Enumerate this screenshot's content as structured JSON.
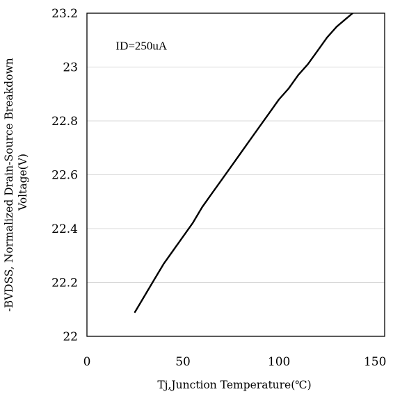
{
  "chart_data": {
    "type": "line",
    "title": "",
    "xlabel": "Tj,Junction Temperature(℃)",
    "ylabel": "-BVDSS, Normalized Drain-Source Breakdown Voltage(V)",
    "ylabel_lines": [
      "-BVDSS, Normalized Drain-Source Breakdown",
      "Voltage(V)"
    ],
    "xlim": [
      0,
      155
    ],
    "ylim": [
      22,
      23.2
    ],
    "x_ticks": [
      0,
      50,
      100,
      150
    ],
    "x_tick_labels": [
      "0",
      "50",
      "100",
      "150"
    ],
    "y_ticks": [
      22,
      22.2,
      22.4,
      22.6,
      22.8,
      23,
      23.2
    ],
    "y_tick_labels": [
      "22",
      "22.2",
      "22.4",
      "22.6",
      "22.8",
      "23",
      "23.2"
    ],
    "grid": "horizontal",
    "legend": "none",
    "annotations": [
      {
        "text": "ID=250uA",
        "x": 15,
        "y": 23.08
      }
    ],
    "series": [
      {
        "color": "#000000",
        "x": [
          25,
          30,
          35,
          40,
          45,
          50,
          55,
          60,
          65,
          70,
          75,
          80,
          85,
          90,
          95,
          100,
          105,
          110,
          115,
          120,
          125,
          130,
          135,
          140,
          145,
          150,
          153
        ],
        "y": [
          22.09,
          22.15,
          22.21,
          22.27,
          22.32,
          22.37,
          22.42,
          22.48,
          22.53,
          22.58,
          22.63,
          22.68,
          22.73,
          22.78,
          22.83,
          22.88,
          22.92,
          22.97,
          23.01,
          23.06,
          23.11,
          23.15,
          23.18,
          23.21,
          23.24,
          23.255,
          23.265
        ]
      }
    ]
  }
}
